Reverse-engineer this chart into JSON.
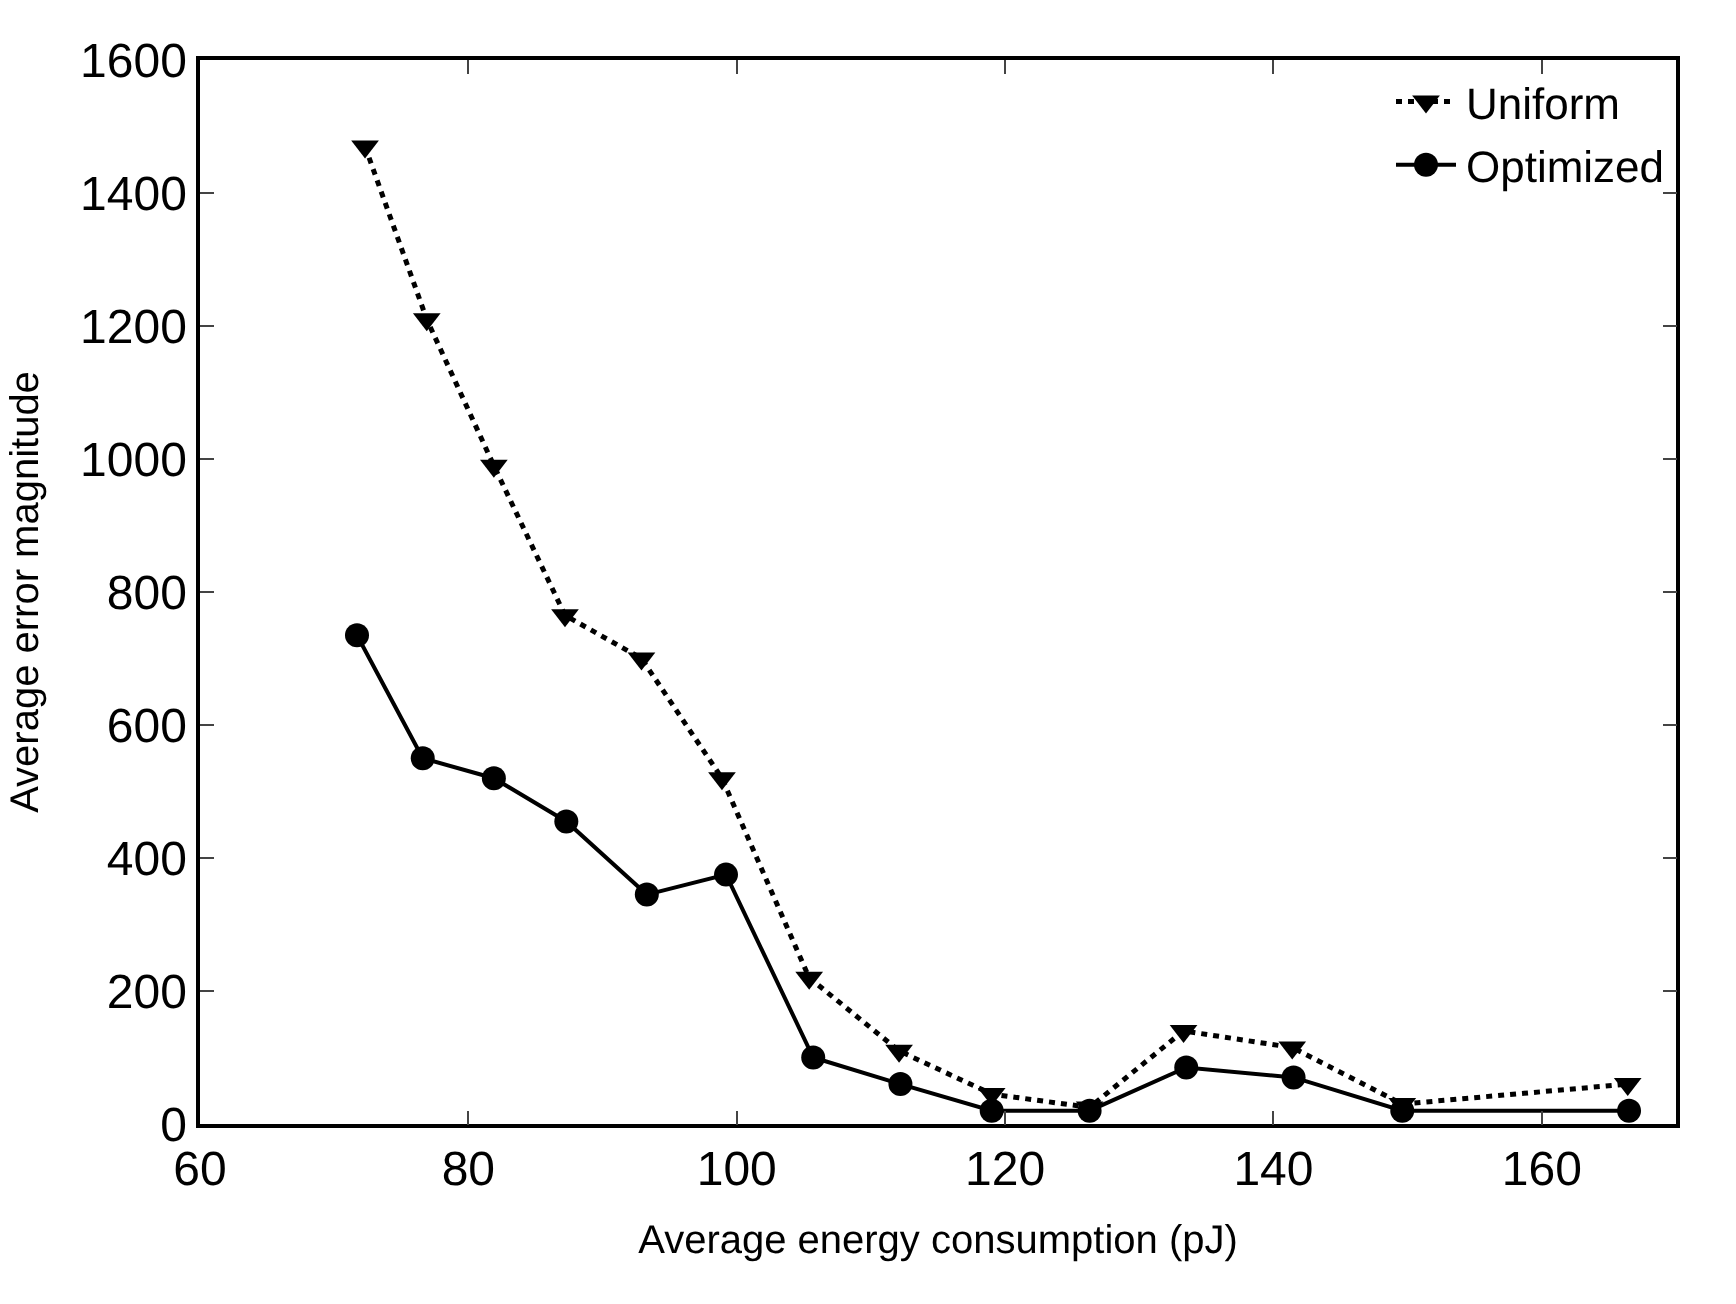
{
  "chart_data": {
    "type": "line",
    "xlabel": "Average energy consumption (pJ)",
    "ylabel": "Average error magnitude",
    "xlim": [
      60,
      170
    ],
    "xticks": [
      60,
      80,
      100,
      120,
      140,
      160
    ],
    "ylim": [
      0,
      1600
    ],
    "yticks": [
      0,
      200,
      400,
      600,
      800,
      1000,
      1200,
      1400,
      1600
    ],
    "legend": "top right",
    "series": [
      {
        "name": "Uniform",
        "color": "#000000",
        "marker": "triangle",
        "line_style": "dotted",
        "x": [
          72.3,
          76.9,
          81.9,
          87.2,
          92.9,
          98.9,
          105.4,
          112.1,
          119,
          126.3,
          133.3,
          141.4,
          149.6,
          166.4
        ],
        "values": [
          1470,
          1210,
          990,
          765,
          700,
          520,
          220,
          110,
          45,
          25,
          140,
          115,
          30,
          60
        ]
      },
      {
        "name": "Optimized",
        "color": "#000000",
        "marker": "circle",
        "line_style": "solid",
        "x": [
          71.7,
          76.6,
          81.9,
          87.3,
          93.3,
          99.2,
          105.7,
          112.2,
          119,
          126.3,
          133.5,
          141.5,
          149.6,
          166.5
        ],
        "values": [
          735,
          550,
          520,
          455,
          345,
          375,
          100,
          60,
          20,
          20,
          85,
          70,
          20,
          20
        ]
      }
    ]
  }
}
